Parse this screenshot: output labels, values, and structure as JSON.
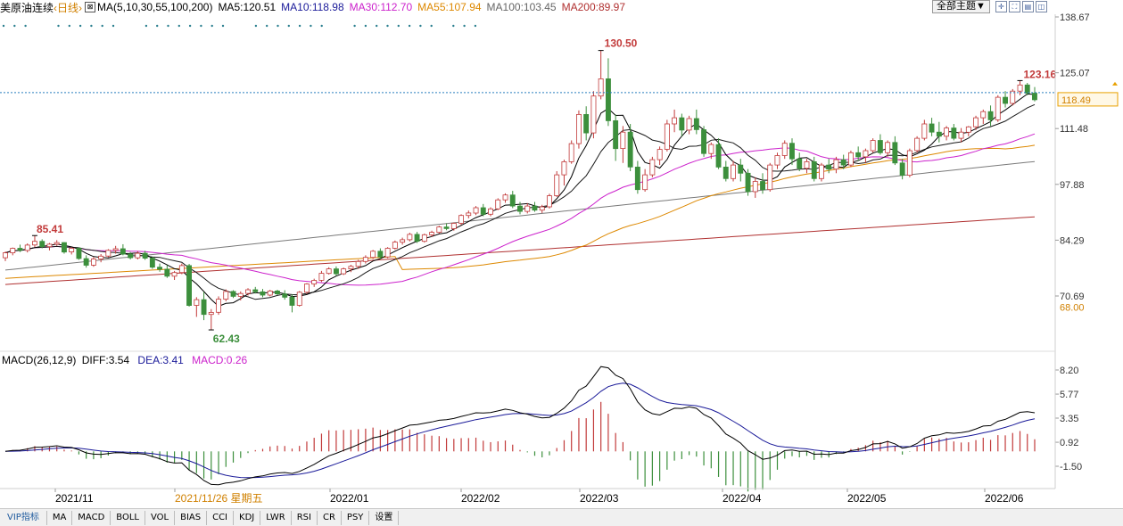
{
  "header": {
    "name": "美原油连续",
    "period": "‹日线›",
    "ma_label": "MA(5,10,30,55,100,200)",
    "ma5": "MA5:120.51",
    "ma10": "MA10:118.98",
    "ma30": "MA30:112.70",
    "ma55": "MA55:107.94",
    "ma100": "MA100:103.45",
    "ma200": "MA200:89.97"
  },
  "colors": {
    "up": "#c23a3a",
    "down": "#3c8f3c",
    "ma5": "#000000",
    "ma10": "#1a1a1a",
    "ma30": "#cc22cc",
    "ma55": "#dd8800",
    "ma100": "#7a7a7a",
    "ma200": "#b03030",
    "diff": "#000000",
    "dea": "#1a1a99",
    "price_box": "#e8a000"
  },
  "toolbar": {
    "theme_label": "全部主题▼"
  },
  "price_axis": {
    "ticks": [
      "138.67",
      "125.07",
      "111.48",
      "97.88",
      "84.29",
      "70.69"
    ],
    "current_price": "118.49",
    "low_label": "68.00"
  },
  "annotations": {
    "high": "130.50",
    "low": "62.43",
    "left_high": "85.41",
    "recent_high": "123.16"
  },
  "macd": {
    "label": "MACD(26,12,9)",
    "diff": "DIFF:3.54",
    "dea": "DEA:3.41",
    "macd": "MACD:0.26",
    "ticks": [
      "8.20",
      "5.77",
      "3.35",
      "0.92",
      "-1.50"
    ]
  },
  "time_axis": {
    "labels": [
      "2021/11",
      "2021/11/26 星期五",
      "2022/01",
      "2022/02",
      "2022/03",
      "2022/04",
      "2022/05",
      "2022/06"
    ]
  },
  "tabs": [
    "VIP指标",
    "MA",
    "MACD",
    "BOLL",
    "VOL",
    "BIAS",
    "CCI",
    "KDJ",
    "LWR",
    "RSI",
    "CR",
    "PSY",
    "设置"
  ],
  "chart_data": {
    "type": "candlestick",
    "title": "美原油连续",
    "period": "日线",
    "y_range": [
      62.43,
      138.67
    ],
    "macd_range": [
      -1.5,
      8.2
    ],
    "candles": [
      [
        80,
        81.5,
        79.2,
        81.2
      ],
      [
        81.2,
        82.5,
        80.6,
        82.3
      ],
      [
        82.3,
        83.2,
        81.4,
        81.8
      ],
      [
        81.8,
        83.5,
        81.3,
        83.1
      ],
      [
        83.1,
        85.41,
        82.6,
        84.0
      ],
      [
        84.0,
        84.5,
        82.3,
        82.7
      ],
      [
        82.7,
        83.6,
        81.8,
        83.3
      ],
      [
        83.3,
        84.3,
        82.9,
        83.7
      ],
      [
        83.7,
        83.8,
        81.0,
        81.4
      ],
      [
        81.4,
        82.6,
        80.8,
        82.3
      ],
      [
        82.3,
        82.5,
        79.5,
        79.8
      ],
      [
        79.8,
        80.6,
        77.6,
        78.2
      ],
      [
        78.2,
        80.2,
        77.8,
        79.7
      ],
      [
        79.7,
        80.9,
        78.9,
        80.4
      ],
      [
        80.4,
        82.1,
        80.1,
        81.8
      ],
      [
        81.8,
        82.9,
        81.0,
        82.2
      ],
      [
        82.2,
        83.3,
        80.6,
        80.9
      ],
      [
        80.9,
        81.4,
        79.6,
        80.0
      ],
      [
        80.0,
        81.6,
        79.6,
        81.1
      ],
      [
        81.1,
        81.7,
        79.5,
        79.9
      ],
      [
        79.9,
        80.2,
        77.3,
        77.7
      ],
      [
        77.7,
        78.6,
        76.6,
        77.2
      ],
      [
        77.2,
        78.2,
        75.1,
        75.5
      ],
      [
        75.5,
        76.8,
        74.6,
        76.4
      ],
      [
        76.4,
        78.6,
        76.0,
        78.1
      ],
      [
        78.1,
        78.5,
        68.1,
        68.4
      ],
      [
        68.4,
        70.4,
        65.6,
        69.8
      ],
      [
        69.8,
        71.7,
        64.8,
        66.2
      ],
      [
        66.2,
        67.5,
        62.43,
        66.7
      ],
      [
        66.7,
        70.6,
        66.1,
        69.9
      ],
      [
        69.9,
        72.3,
        69.4,
        71.8
      ],
      [
        71.8,
        72.1,
        70.2,
        70.6
      ],
      [
        70.6,
        71.8,
        69.6,
        71.3
      ],
      [
        71.3,
        72.6,
        70.8,
        72.2
      ],
      [
        72.2,
        72.9,
        71.3,
        71.7
      ],
      [
        71.7,
        72.4,
        70.4,
        70.9
      ],
      [
        70.9,
        72.2,
        70.6,
        71.9
      ],
      [
        71.9,
        72.2,
        70.9,
        71.2
      ],
      [
        71.2,
        72.1,
        69.8,
        70.4
      ],
      [
        70.4,
        71.1,
        66.7,
        68.4
      ],
      [
        68.4,
        71.9,
        68.1,
        71.6
      ],
      [
        71.6,
        73.8,
        71.2,
        73.6
      ],
      [
        73.6,
        74.9,
        72.9,
        74.5
      ],
      [
        74.5,
        76.8,
        74.1,
        76.2
      ],
      [
        76.2,
        77.7,
        75.9,
        77.3
      ],
      [
        77.3,
        77.9,
        75.6,
        76.1
      ],
      [
        76.1,
        77.6,
        75.8,
        77.3
      ],
      [
        77.3,
        78.3,
        76.5,
        77.9
      ],
      [
        77.9,
        79.5,
        77.3,
        79.1
      ],
      [
        79.1,
        80.6,
        78.6,
        80.1
      ],
      [
        80.1,
        81.9,
        79.7,
        81.6
      ],
      [
        81.6,
        82.3,
        79.6,
        80.2
      ],
      [
        80.2,
        82.6,
        79.9,
        82.3
      ],
      [
        82.3,
        84.2,
        82.0,
        83.8
      ],
      [
        83.8,
        84.9,
        83.2,
        84.4
      ],
      [
        84.4,
        86.1,
        84.0,
        85.7
      ],
      [
        85.7,
        86.3,
        83.6,
        84.0
      ],
      [
        84.0,
        85.9,
        83.7,
        85.6
      ],
      [
        85.6,
        86.6,
        85.1,
        86.2
      ],
      [
        86.2,
        87.8,
        85.9,
        87.5
      ],
      [
        87.5,
        88.4,
        86.7,
        87.1
      ],
      [
        87.1,
        88.6,
        86.6,
        88.4
      ],
      [
        88.4,
        90.6,
        88.0,
        90.3
      ],
      [
        90.3,
        91.5,
        89.6,
        90.9
      ],
      [
        90.9,
        92.6,
        90.4,
        92.2
      ],
      [
        92.2,
        93.1,
        90.1,
        90.6
      ],
      [
        90.6,
        92.3,
        90.1,
        91.9
      ],
      [
        91.9,
        94.5,
        91.6,
        94.1
      ],
      [
        94.1,
        95.7,
        93.4,
        95.3
      ],
      [
        95.3,
        96.3,
        92.1,
        92.6
      ],
      [
        92.6,
        93.6,
        90.6,
        91.3
      ],
      [
        91.3,
        93.3,
        90.8,
        92.6
      ],
      [
        92.6,
        93.6,
        91.2,
        91.6
      ],
      [
        91.6,
        92.9,
        90.9,
        92.4
      ],
      [
        92.4,
        95.6,
        92.0,
        95.1
      ],
      [
        95.1,
        101.1,
        94.8,
        100.2
      ],
      [
        100.2,
        103.9,
        97.6,
        103.4
      ],
      [
        103.4,
        108.6,
        102.9,
        107.8
      ],
      [
        107.8,
        115.9,
        106.6,
        114.9
      ],
      [
        114.9,
        116.9,
        108.6,
        110.4
      ],
      [
        110.4,
        120.6,
        109.1,
        119.4
      ],
      [
        119.4,
        130.5,
        118.6,
        123.6
      ],
      [
        123.6,
        128.6,
        112.1,
        113.4
      ],
      [
        113.4,
        114.9,
        103.6,
        106.6
      ],
      [
        106.6,
        112.1,
        103.1,
        110.6
      ],
      [
        110.6,
        112.6,
        101.1,
        102.1
      ],
      [
        102.1,
        103.6,
        95.6,
        96.6
      ],
      [
        96.6,
        101.6,
        96.1,
        100.2
      ],
      [
        100.2,
        104.6,
        99.6,
        103.9
      ],
      [
        103.9,
        107.1,
        102.6,
        106.4
      ],
      [
        106.4,
        113.6,
        105.9,
        112.6
      ],
      [
        112.6,
        116.1,
        110.6,
        114.1
      ],
      [
        114.1,
        115.1,
        109.6,
        111.1
      ],
      [
        111.1,
        114.6,
        110.1,
        113.9
      ],
      [
        113.9,
        116.1,
        110.1,
        111.2
      ],
      [
        111.2,
        112.1,
        104.6,
        105.4
      ],
      [
        105.4,
        108.1,
        104.1,
        107.6
      ],
      [
        107.6,
        109.1,
        101.6,
        102.1
      ],
      [
        102.1,
        103.6,
        98.6,
        99.3
      ],
      [
        99.3,
        103.6,
        98.6,
        102.6
      ],
      [
        102.6,
        104.1,
        98.6,
        100.6
      ],
      [
        100.6,
        101.6,
        95.1,
        96.1
      ],
      [
        96.1,
        99.6,
        94.6,
        98.6
      ],
      [
        98.6,
        100.6,
        95.6,
        96.6
      ],
      [
        96.6,
        103.1,
        96.1,
        102.6
      ],
      [
        102.6,
        105.6,
        101.6,
        104.9
      ],
      [
        104.9,
        108.6,
        104.1,
        107.9
      ],
      [
        107.9,
        109.1,
        102.6,
        104.1
      ],
      [
        104.1,
        105.6,
        101.1,
        101.8
      ],
      [
        101.8,
        104.1,
        100.6,
        103.4
      ],
      [
        103.4,
        104.6,
        98.6,
        99.3
      ],
      [
        99.3,
        103.1,
        98.6,
        102.6
      ],
      [
        102.6,
        104.1,
        100.6,
        101.6
      ],
      [
        101.6,
        104.6,
        100.6,
        103.9
      ],
      [
        103.9,
        105.1,
        101.6,
        102.6
      ],
      [
        102.6,
        106.1,
        102.1,
        105.6
      ],
      [
        105.6,
        107.1,
        103.6,
        104.6
      ],
      [
        104.6,
        106.6,
        103.1,
        106.1
      ],
      [
        106.1,
        109.1,
        105.6,
        108.6
      ],
      [
        108.6,
        110.1,
        105.1,
        105.6
      ],
      [
        105.6,
        108.6,
        104.6,
        108.1
      ],
      [
        108.1,
        109.6,
        102.6,
        103.1
      ],
      [
        103.1,
        104.1,
        99.1,
        100.1
      ],
      [
        100.1,
        106.6,
        99.6,
        106.1
      ],
      [
        106.1,
        109.6,
        105.6,
        109.1
      ],
      [
        109.1,
        113.6,
        108.6,
        112.6
      ],
      [
        112.6,
        114.1,
        109.6,
        110.6
      ],
      [
        110.6,
        113.1,
        108.1,
        109.6
      ],
      [
        109.6,
        112.1,
        108.6,
        111.6
      ],
      [
        111.6,
        112.6,
        108.6,
        109.1
      ],
      [
        109.1,
        111.6,
        108.1,
        110.6
      ],
      [
        110.6,
        112.1,
        109.6,
        111.9
      ],
      [
        111.9,
        114.6,
        111.1,
        114.1
      ],
      [
        114.1,
        116.1,
        112.6,
        115.6
      ],
      [
        115.6,
        117.1,
        112.1,
        113.6
      ],
      [
        113.6,
        119.6,
        113.1,
        119.1
      ],
      [
        119.1,
        120.6,
        116.6,
        117.6
      ],
      [
        117.6,
        121.1,
        117.1,
        120.6
      ],
      [
        120.6,
        123.16,
        119.6,
        122.1
      ],
      [
        122.1,
        122.6,
        119.6,
        120.1
      ],
      [
        120.1,
        121.6,
        118.1,
        118.49
      ]
    ]
  }
}
